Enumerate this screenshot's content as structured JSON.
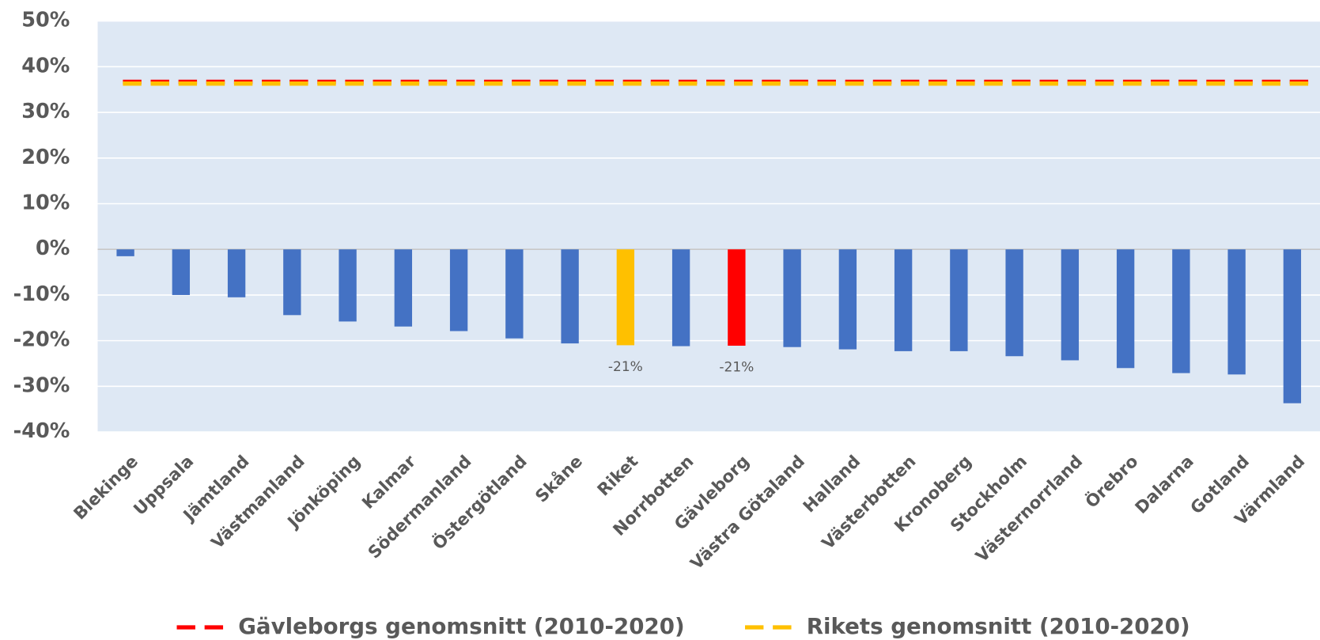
{
  "chart_data": {
    "type": "bar",
    "categories": [
      "Blekinge",
      "Uppsala",
      "Jämtland",
      "Västmanland",
      "Jönköping",
      "Kalmar",
      "Södermanland",
      "Östergötland",
      "Skåne",
      "Riket",
      "Norrbotten",
      "Gävleborg",
      "Västra Götaland",
      "Halland",
      "Västerbotten",
      "Kronoberg",
      "Stockholm",
      "Västernorrland",
      "Örebro",
      "Dalarna",
      "Gotland",
      "Värmland"
    ],
    "values": [
      -1.5,
      -10,
      -10.5,
      -14.4,
      -15.8,
      -16.9,
      -17.9,
      -19.5,
      -20.6,
      -21,
      -21.2,
      -21.1,
      -21.4,
      -21.9,
      -22.3,
      -22.3,
      -23.4,
      -24.3,
      -26,
      -27.1,
      -27.4,
      -33.7
    ],
    "value_labels": [
      null,
      null,
      null,
      null,
      null,
      null,
      null,
      null,
      null,
      "-21%",
      null,
      "-21%",
      null,
      null,
      null,
      null,
      null,
      null,
      null,
      null,
      null,
      null
    ],
    "colors": [
      "#4472c4",
      "#4472c4",
      "#4472c4",
      "#4472c4",
      "#4472c4",
      "#4472c4",
      "#4472c4",
      "#4472c4",
      "#4472c4",
      "#ffc000",
      "#4472c4",
      "#ff0000",
      "#4472c4",
      "#4472c4",
      "#4472c4",
      "#4472c4",
      "#4472c4",
      "#4472c4",
      "#4472c4",
      "#4472c4",
      "#4472c4",
      "#4472c4"
    ],
    "reference_lines": [
      {
        "name": "Gävleborgs genomsnitt (2010-2020)",
        "color": "#ff0000",
        "value": 36.7
      },
      {
        "name": "Rikets genomsnitt (2010-2020)",
        "color": "#ffc000",
        "value": 36.3
      }
    ],
    "ylim": [
      -40,
      50
    ],
    "yticks": [
      {
        "value": -40,
        "label": "-40%"
      },
      {
        "value": -30,
        "label": "-30%"
      },
      {
        "value": -20,
        "label": "-20%"
      },
      {
        "value": -10,
        "label": "-10%"
      },
      {
        "value": 0,
        "label": "0%"
      },
      {
        "value": 10,
        "label": "10%"
      },
      {
        "value": 20,
        "label": "20%"
      },
      {
        "value": 30,
        "label": "30%"
      },
      {
        "value": 40,
        "label": "40%"
      },
      {
        "value": 50,
        "label": "50%"
      }
    ],
    "grid": true
  }
}
